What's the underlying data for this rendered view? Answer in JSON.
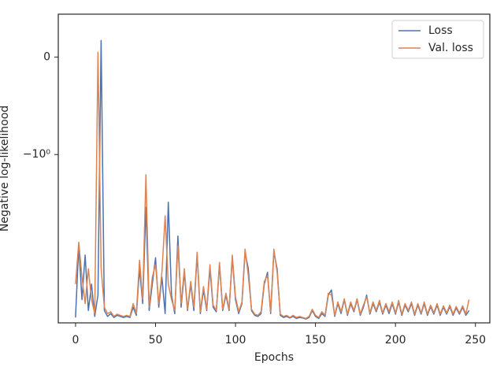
{
  "chart_data": {
    "type": "line",
    "xlabel": "Epochs",
    "ylabel": "Negative log-likelihood",
    "yscale": "symlog",
    "linthresh": 1,
    "xlim": [
      -10.8,
      259
    ],
    "xticks": [
      0,
      50,
      100,
      150,
      200,
      250
    ],
    "ylim": [
      -83,
      0.44
    ],
    "yticks": [
      0,
      {
        "value": -1,
        "label": "−10⁰"
      }
    ],
    "legend": "upper right",
    "grid": false,
    "x": [
      0,
      2,
      4,
      6,
      8,
      10,
      12,
      14,
      16,
      18,
      20,
      22,
      24,
      26,
      28,
      30,
      32,
      34,
      36,
      38,
      40,
      42,
      44,
      46,
      48,
      50,
      52,
      54,
      56,
      58,
      60,
      62,
      64,
      66,
      68,
      70,
      72,
      74,
      76,
      78,
      80,
      82,
      84,
      86,
      88,
      90,
      92,
      94,
      96,
      98,
      100,
      102,
      104,
      106,
      108,
      110,
      112,
      114,
      116,
      118,
      120,
      122,
      124,
      126,
      128,
      130,
      132,
      134,
      136,
      138,
      140,
      142,
      144,
      146,
      148,
      150,
      152,
      154,
      156,
      158,
      160,
      162,
      164,
      166,
      168,
      170,
      172,
      174,
      176,
      178,
      180,
      182,
      184,
      186,
      188,
      190,
      192,
      194,
      196,
      198,
      200,
      202,
      204,
      206,
      208,
      210,
      212,
      214,
      216,
      218,
      220,
      222,
      224,
      226,
      228,
      230,
      232,
      234,
      236,
      238,
      240,
      242,
      244,
      246
    ],
    "series": [
      {
        "name": "Loss",
        "color": "#4c72b0",
        "values": [
          -72,
          -11,
          -45,
          -14,
          -60,
          -30,
          -70,
          -40,
          0.17,
          -60,
          -70,
          -65,
          -72,
          -68,
          -70,
          -72,
          -70,
          -72,
          -55,
          -68,
          -20,
          -50,
          -4,
          -60,
          -30,
          -15,
          -55,
          -25,
          -65,
          -3.5,
          -40,
          -65,
          -8.5,
          -55,
          -22,
          -60,
          -30,
          -60,
          -14,
          -65,
          -35,
          -60,
          -20,
          -55,
          -62,
          -18,
          -60,
          -40,
          -60,
          -15,
          -45,
          -65,
          -50,
          -13,
          -20,
          -60,
          -68,
          -70,
          -65,
          -30,
          -22,
          -65,
          -13,
          -20,
          -68,
          -72,
          -70,
          -73,
          -70,
          -74,
          -72,
          -73,
          -75,
          -72,
          -60,
          -70,
          -74,
          -65,
          -70,
          -40,
          -35,
          -70,
          -50,
          -65,
          -45,
          -68,
          -50,
          -62,
          -45,
          -68,
          -55,
          -40,
          -66,
          -50,
          -62,
          -48,
          -66,
          -52,
          -65,
          -50,
          -66,
          -48,
          -68,
          -52,
          -62,
          -50,
          -68,
          -52,
          -66,
          -50,
          -68,
          -54,
          -66,
          -52,
          -68,
          -55,
          -66,
          -54,
          -68,
          -56,
          -66,
          -55,
          -68,
          -60
        ]
      },
      {
        "name": "Val. loss",
        "color": "#dd8452",
        "values": [
          -30,
          -10,
          -25,
          -50,
          -20,
          -45,
          -65,
          0.05,
          -20,
          -55,
          -65,
          -62,
          -70,
          -66,
          -68,
          -70,
          -68,
          -70,
          -50,
          -65,
          -16,
          -45,
          -1.7,
          -55,
          -25,
          -18,
          -50,
          -22,
          -5,
          -30,
          -45,
          -60,
          -11,
          -50,
          -20,
          -58,
          -28,
          -55,
          -13,
          -62,
          -32,
          -58,
          -18,
          -52,
          -60,
          -17,
          -58,
          -38,
          -58,
          -14,
          -42,
          -62,
          -48,
          -12,
          -24,
          -58,
          -66,
          -68,
          -62,
          -28,
          -24,
          -62,
          -12,
          -22,
          -66,
          -70,
          -68,
          -72,
          -68,
          -72,
          -70,
          -72,
          -74,
          -70,
          -58,
          -68,
          -72,
          -62,
          -68,
          -38,
          -40,
          -68,
          -48,
          -62,
          -44,
          -66,
          -48,
          -60,
          -44,
          -66,
          -52,
          -42,
          -64,
          -48,
          -60,
          -46,
          -64,
          -50,
          -62,
          -48,
          -64,
          -46,
          -66,
          -50,
          -60,
          -48,
          -66,
          -50,
          -64,
          -48,
          -66,
          -52,
          -64,
          -50,
          -66,
          -53,
          -64,
          -52,
          -66,
          -54,
          -64,
          -53,
          -66,
          -45
        ]
      }
    ]
  }
}
